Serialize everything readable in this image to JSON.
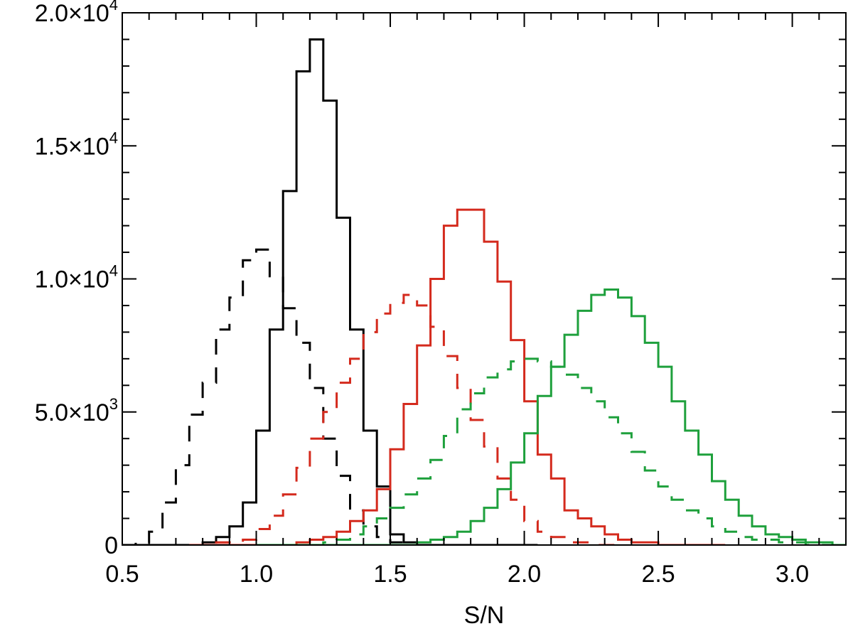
{
  "chart_data": {
    "type": "line",
    "step": true,
    "title": "",
    "xlabel": "S/N",
    "ylabel": "",
    "xlim": [
      0.5,
      3.2
    ],
    "ylim": [
      0,
      20000
    ],
    "xticks": [
      {
        "value": 0.5,
        "label": "0.5"
      },
      {
        "value": 1.0,
        "label": "1.0"
      },
      {
        "value": 1.5,
        "label": "1.5"
      },
      {
        "value": 2.0,
        "label": "2.0"
      },
      {
        "value": 2.5,
        "label": "2.5"
      },
      {
        "value": 3.0,
        "label": "3.0"
      }
    ],
    "yticks": [
      {
        "value": 0,
        "mantissa": "0",
        "exponent": ""
      },
      {
        "value": 5000,
        "mantissa": "5.0×10",
        "exponent": "3"
      },
      {
        "value": 10000,
        "mantissa": "1.0×10",
        "exponent": "4"
      },
      {
        "value": 15000,
        "mantissa": "1.5×10",
        "exponent": "4"
      },
      {
        "value": 20000,
        "mantissa": "2.0×10",
        "exponent": "4"
      }
    ],
    "grid": false,
    "series": [
      {
        "color": "#000000",
        "dash": "solid",
        "x": [
          0.5,
          0.55,
          0.6,
          0.65,
          0.7,
          0.75,
          0.8,
          0.85,
          0.9,
          0.95,
          1.0,
          1.05,
          1.1,
          1.15,
          1.2,
          1.25,
          1.3,
          1.35,
          1.4,
          1.45,
          1.5,
          1.55,
          1.6,
          1.65,
          1.7,
          1.75,
          1.8,
          1.85,
          1.9,
          1.95,
          2.0
        ],
        "y": [
          0,
          0,
          0,
          0,
          0,
          0,
          100,
          300,
          700,
          1600,
          4300,
          8100,
          13300,
          17800,
          19000,
          16700,
          12300,
          8100,
          4300,
          2200,
          400,
          100,
          0,
          0,
          0,
          0,
          0,
          0,
          0,
          0,
          0
        ]
      },
      {
        "color": "#000000",
        "dash": "dashed",
        "x": [
          0.5,
          0.55,
          0.6,
          0.65,
          0.7,
          0.75,
          0.8,
          0.85,
          0.9,
          0.95,
          1.0,
          1.05,
          1.1,
          1.15,
          1.2,
          1.25,
          1.3,
          1.35,
          1.4,
          1.45,
          1.5,
          1.55,
          1.6,
          1.65,
          1.7,
          1.75,
          1.8
        ],
        "y": [
          0,
          100,
          500,
          1600,
          3000,
          4900,
          6100,
          8100,
          9300,
          10700,
          11100,
          10100,
          8900,
          7600,
          5900,
          4000,
          2600,
          1300,
          700,
          300,
          100,
          0,
          0,
          0,
          0,
          0,
          0
        ]
      },
      {
        "color": "#d42a1d",
        "dash": "solid",
        "x": [
          0.75,
          0.8,
          0.85,
          0.9,
          0.95,
          1.0,
          1.05,
          1.1,
          1.15,
          1.2,
          1.25,
          1.3,
          1.35,
          1.4,
          1.45,
          1.5,
          1.55,
          1.6,
          1.65,
          1.7,
          1.75,
          1.8,
          1.85,
          1.9,
          1.95,
          2.0,
          2.05,
          2.1,
          2.15,
          2.2,
          2.25,
          2.3,
          2.35,
          2.4,
          2.45,
          2.5,
          2.55,
          2.6,
          2.65,
          2.7
        ],
        "y": [
          0,
          0,
          0,
          0,
          0,
          0,
          0,
          0,
          100,
          200,
          300,
          500,
          900,
          1300,
          2100,
          3600,
          5300,
          7500,
          10000,
          12000,
          12600,
          12600,
          11400,
          9900,
          7700,
          5400,
          3400,
          2500,
          1300,
          1000,
          700,
          400,
          200,
          100,
          100,
          0,
          0,
          0,
          0,
          0
        ]
      },
      {
        "color": "#d42a1d",
        "dash": "dashed",
        "x": [
          0.75,
          0.8,
          0.85,
          0.9,
          0.95,
          1.0,
          1.05,
          1.1,
          1.15,
          1.2,
          1.25,
          1.3,
          1.35,
          1.4,
          1.45,
          1.5,
          1.55,
          1.6,
          1.65,
          1.7,
          1.75,
          1.8,
          1.85,
          1.9,
          1.95,
          2.0,
          2.05,
          2.1,
          2.15,
          2.2,
          2.25,
          2.3
        ],
        "y": [
          0,
          0,
          100,
          100,
          200,
          600,
          1100,
          1900,
          2900,
          4000,
          5000,
          6100,
          7000,
          8000,
          8700,
          9100,
          9400,
          9000,
          8200,
          7100,
          5900,
          4700,
          3700,
          2500,
          1700,
          900,
          500,
          300,
          100,
          100,
          0,
          0
        ]
      },
      {
        "color": "#1ea03c",
        "dash": "solid",
        "x": [
          1.0,
          1.05,
          1.1,
          1.15,
          1.2,
          1.25,
          1.3,
          1.35,
          1.4,
          1.45,
          1.5,
          1.55,
          1.6,
          1.65,
          1.7,
          1.75,
          1.8,
          1.85,
          1.9,
          1.95,
          2.0,
          2.05,
          2.1,
          2.15,
          2.2,
          2.25,
          2.3,
          2.35,
          2.4,
          2.45,
          2.5,
          2.55,
          2.6,
          2.65,
          2.7,
          2.75,
          2.8,
          2.85,
          2.9,
          2.95,
          3.0,
          3.05,
          3.1,
          3.15
        ],
        "y": [
          0,
          0,
          0,
          0,
          0,
          0,
          0,
          0,
          0,
          0,
          0,
          0,
          100,
          200,
          300,
          500,
          900,
          1400,
          2100,
          3100,
          4200,
          5600,
          6700,
          7900,
          8800,
          9400,
          9600,
          9300,
          8600,
          7600,
          6700,
          5400,
          4300,
          3400,
          2400,
          1700,
          1100,
          700,
          400,
          300,
          200,
          100,
          100,
          0
        ]
      },
      {
        "color": "#1ea03c",
        "dash": "dashed",
        "x": [
          1.0,
          1.05,
          1.1,
          1.15,
          1.2,
          1.25,
          1.3,
          1.35,
          1.4,
          1.45,
          1.5,
          1.55,
          1.6,
          1.65,
          1.7,
          1.75,
          1.8,
          1.85,
          1.9,
          1.95,
          2.0,
          2.05,
          2.1,
          2.15,
          2.2,
          2.25,
          2.3,
          2.35,
          2.4,
          2.45,
          2.5,
          2.55,
          2.6,
          2.65,
          2.7,
          2.75,
          2.8,
          2.85,
          2.9,
          2.95,
          3.0,
          3.05,
          3.1,
          3.15,
          3.2
        ],
        "y": [
          0,
          0,
          0,
          0,
          0,
          100,
          200,
          400,
          700,
          1000,
          1400,
          1900,
          2500,
          3200,
          4100,
          5100,
          5700,
          6300,
          6600,
          6900,
          7000,
          6900,
          6700,
          6400,
          5900,
          5400,
          4800,
          4200,
          3500,
          2800,
          2200,
          1700,
          1300,
          1000,
          700,
          500,
          300,
          200,
          200,
          100,
          100,
          0,
          0,
          0,
          0
        ]
      }
    ]
  }
}
